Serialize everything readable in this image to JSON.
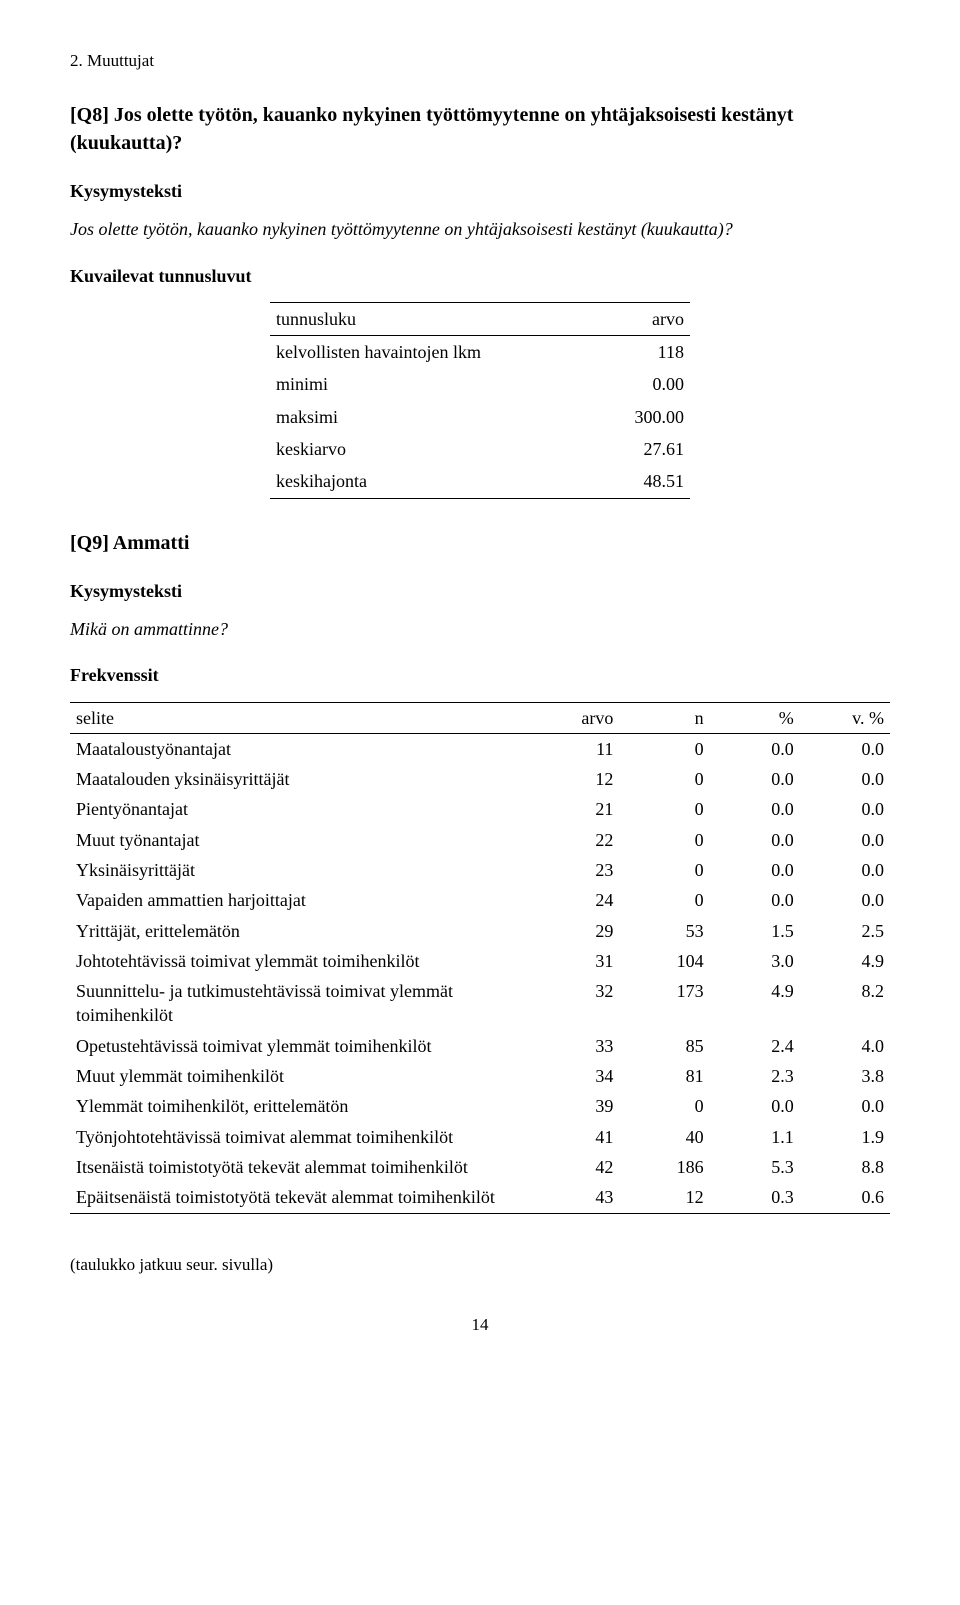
{
  "header_small": "2. Muuttujat",
  "q8": {
    "title": "[Q8] Jos olette työtön, kauanko nykyinen työttömyytenne on yhtäjaksoisesti kestänyt (kuukautta)?",
    "kysymysteksti_label": "Kysymysteksti",
    "kysymysteksti_text": "Jos olette työtön, kauanko nykyinen työttömyytenne on yhtäjaksoisesti kestänyt (kuukautta)?",
    "kuvailevat_label": "Kuvailevat tunnusluvut",
    "stats_headers": {
      "tunnusluku": "tunnusluku",
      "arvo": "arvo"
    },
    "stats": [
      {
        "label": "kelvollisten havaintojen lkm",
        "value": "118"
      },
      {
        "label": "minimi",
        "value": "0.00"
      },
      {
        "label": "maksimi",
        "value": "300.00"
      },
      {
        "label": "keskiarvo",
        "value": "27.61"
      },
      {
        "label": "keskihajonta",
        "value": "48.51"
      }
    ]
  },
  "q9": {
    "title": "[Q9] Ammatti",
    "kysymysteksti_label": "Kysymysteksti",
    "kysymysteksti_text": "Mikä on ammattinne?",
    "frekvenssit_label": "Frekvenssit",
    "headers": {
      "selite": "selite",
      "arvo": "arvo",
      "n": "n",
      "pct": "%",
      "vpct": "v. %"
    },
    "rows": [
      {
        "selite": "Maataloustyönantajat",
        "arvo": "11",
        "n": "0",
        "pct": "0.0",
        "vpct": "0.0"
      },
      {
        "selite": "Maatalouden yksinäisyrittäjät",
        "arvo": "12",
        "n": "0",
        "pct": "0.0",
        "vpct": "0.0"
      },
      {
        "selite": "Pientyönantajat",
        "arvo": "21",
        "n": "0",
        "pct": "0.0",
        "vpct": "0.0"
      },
      {
        "selite": "Muut työnantajat",
        "arvo": "22",
        "n": "0",
        "pct": "0.0",
        "vpct": "0.0"
      },
      {
        "selite": "Yksinäisyrittäjät",
        "arvo": "23",
        "n": "0",
        "pct": "0.0",
        "vpct": "0.0"
      },
      {
        "selite": "Vapaiden ammattien harjoittajat",
        "arvo": "24",
        "n": "0",
        "pct": "0.0",
        "vpct": "0.0"
      },
      {
        "selite": "Yrittäjät, erittelemätön",
        "arvo": "29",
        "n": "53",
        "pct": "1.5",
        "vpct": "2.5"
      },
      {
        "selite": "Johtotehtävissä toimivat ylemmät toimihenkilöt",
        "arvo": "31",
        "n": "104",
        "pct": "3.0",
        "vpct": "4.9"
      },
      {
        "selite": "Suunnittelu- ja tutkimustehtävissä toimivat ylemmät toimihenkilöt",
        "arvo": "32",
        "n": "173",
        "pct": "4.9",
        "vpct": "8.2"
      },
      {
        "selite": "Opetustehtävissä toimivat ylemmät toimihenkilöt",
        "arvo": "33",
        "n": "85",
        "pct": "2.4",
        "vpct": "4.0"
      },
      {
        "selite": "Muut ylemmät toimihenkilöt",
        "arvo": "34",
        "n": "81",
        "pct": "2.3",
        "vpct": "3.8"
      },
      {
        "selite": "Ylemmät toimihenkilöt, erittelemätön",
        "arvo": "39",
        "n": "0",
        "pct": "0.0",
        "vpct": "0.0"
      },
      {
        "selite": "Työnjohtotehtävissä toimivat alemmat toimihenkilöt",
        "arvo": "41",
        "n": "40",
        "pct": "1.1",
        "vpct": "1.9"
      },
      {
        "selite": "Itsenäistä toimistotyötä tekevät alemmat toimihenkilöt",
        "arvo": "42",
        "n": "186",
        "pct": "5.3",
        "vpct": "8.8"
      },
      {
        "selite": "Epäitsenäistä toimistotyötä tekevät alemmat toimihenkilöt",
        "arvo": "43",
        "n": "12",
        "pct": "0.3",
        "vpct": "0.6"
      }
    ]
  },
  "continues_note": "(taulukko jatkuu seur. sivulla)",
  "page_number": "14"
}
